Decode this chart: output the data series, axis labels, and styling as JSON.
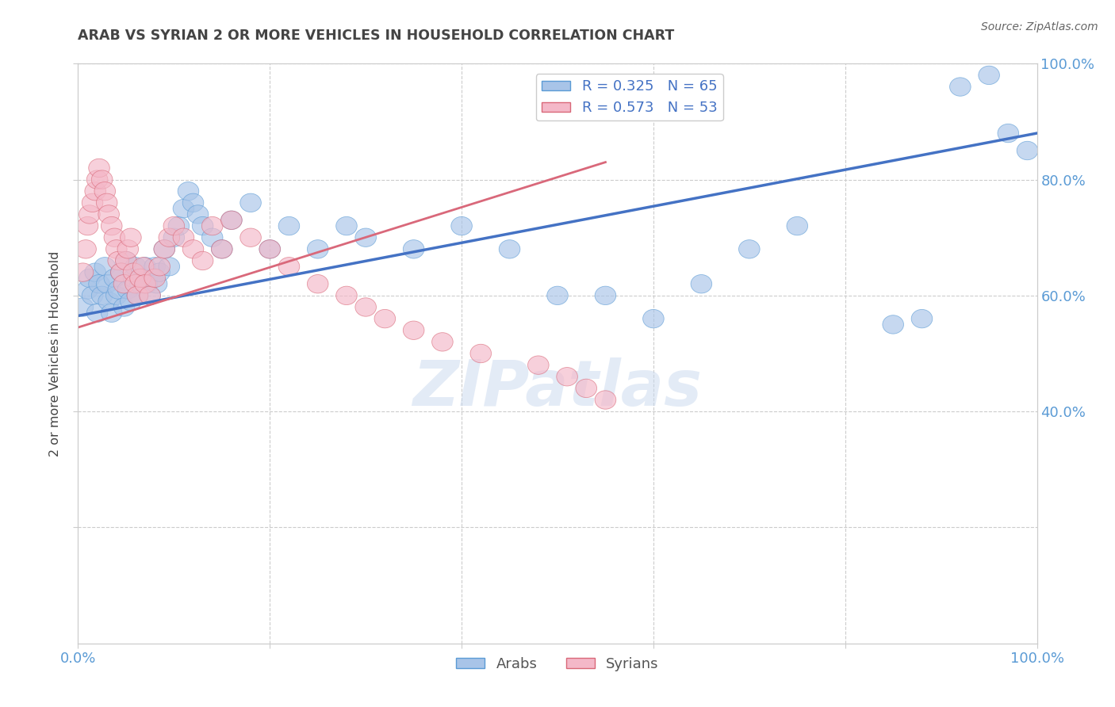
{
  "title": "ARAB VS SYRIAN 2 OR MORE VEHICLES IN HOUSEHOLD CORRELATION CHART",
  "source": "Source: ZipAtlas.com",
  "ylabel": "2 or more Vehicles in Household",
  "arab_R": 0.325,
  "arab_N": 65,
  "syrian_R": 0.573,
  "syrian_N": 53,
  "arab_color_face": "#a8c4e8",
  "arab_color_edge": "#5b9bd5",
  "syrian_color_face": "#f4b8c8",
  "syrian_color_edge": "#d96878",
  "arab_line_color": "#4472c4",
  "syrian_line_color": "#d9687a",
  "title_color": "#444444",
  "axis_label_color": "#5b9bd5",
  "grid_color": "#cccccc",
  "background_color": "#ffffff",
  "xlim": [
    0.0,
    1.0
  ],
  "ylim": [
    0.0,
    1.0
  ],
  "arab_line_x0": 0.0,
  "arab_line_y0": 0.565,
  "arab_line_x1": 1.0,
  "arab_line_y1": 0.88,
  "syrian_line_x0": 0.0,
  "syrian_line_y0": 0.545,
  "syrian_line_x1": 0.55,
  "syrian_line_y1": 0.83,
  "arab_x": [
    0.005,
    0.01,
    0.012,
    0.015,
    0.018,
    0.02,
    0.022,
    0.025,
    0.028,
    0.03,
    0.032,
    0.035,
    0.038,
    0.04,
    0.042,
    0.045,
    0.048,
    0.05,
    0.052,
    0.055,
    0.058,
    0.06,
    0.062,
    0.065,
    0.068,
    0.07,
    0.072,
    0.075,
    0.078,
    0.08,
    0.082,
    0.085,
    0.09,
    0.095,
    0.1,
    0.105,
    0.11,
    0.115,
    0.12,
    0.125,
    0.13,
    0.14,
    0.15,
    0.16,
    0.18,
    0.2,
    0.22,
    0.25,
    0.28,
    0.3,
    0.35,
    0.4,
    0.45,
    0.5,
    0.55,
    0.6,
    0.65,
    0.7,
    0.75,
    0.85,
    0.88,
    0.92,
    0.95,
    0.97,
    0.99
  ],
  "arab_y": [
    0.58,
    0.61,
    0.63,
    0.6,
    0.64,
    0.57,
    0.62,
    0.6,
    0.65,
    0.62,
    0.59,
    0.57,
    0.63,
    0.6,
    0.61,
    0.64,
    0.58,
    0.66,
    0.61,
    0.59,
    0.63,
    0.65,
    0.6,
    0.62,
    0.63,
    0.65,
    0.62,
    0.6,
    0.63,
    0.65,
    0.62,
    0.64,
    0.68,
    0.65,
    0.7,
    0.72,
    0.75,
    0.78,
    0.76,
    0.74,
    0.72,
    0.7,
    0.68,
    0.73,
    0.76,
    0.68,
    0.72,
    0.68,
    0.72,
    0.7,
    0.68,
    0.72,
    0.68,
    0.6,
    0.6,
    0.56,
    0.62,
    0.68,
    0.72,
    0.55,
    0.56,
    0.96,
    0.98,
    0.88,
    0.85
  ],
  "syrian_x": [
    0.005,
    0.008,
    0.01,
    0.012,
    0.015,
    0.018,
    0.02,
    0.022,
    0.025,
    0.028,
    0.03,
    0.032,
    0.035,
    0.038,
    0.04,
    0.042,
    0.045,
    0.048,
    0.05,
    0.052,
    0.055,
    0.058,
    0.06,
    0.062,
    0.065,
    0.068,
    0.07,
    0.075,
    0.08,
    0.085,
    0.09,
    0.095,
    0.1,
    0.11,
    0.12,
    0.13,
    0.14,
    0.15,
    0.16,
    0.18,
    0.2,
    0.22,
    0.25,
    0.28,
    0.3,
    0.32,
    0.35,
    0.38,
    0.42,
    0.48,
    0.51,
    0.53,
    0.55
  ],
  "syrian_y": [
    0.64,
    0.68,
    0.72,
    0.74,
    0.76,
    0.78,
    0.8,
    0.82,
    0.8,
    0.78,
    0.76,
    0.74,
    0.72,
    0.7,
    0.68,
    0.66,
    0.64,
    0.62,
    0.66,
    0.68,
    0.7,
    0.64,
    0.62,
    0.6,
    0.63,
    0.65,
    0.62,
    0.6,
    0.63,
    0.65,
    0.68,
    0.7,
    0.72,
    0.7,
    0.68,
    0.66,
    0.72,
    0.68,
    0.73,
    0.7,
    0.68,
    0.65,
    0.62,
    0.6,
    0.58,
    0.56,
    0.54,
    0.52,
    0.5,
    0.48,
    0.46,
    0.44,
    0.42
  ],
  "watermark_text": "ZIPatlas",
  "watermark_color": "#c8d8ee",
  "watermark_alpha": 0.5
}
